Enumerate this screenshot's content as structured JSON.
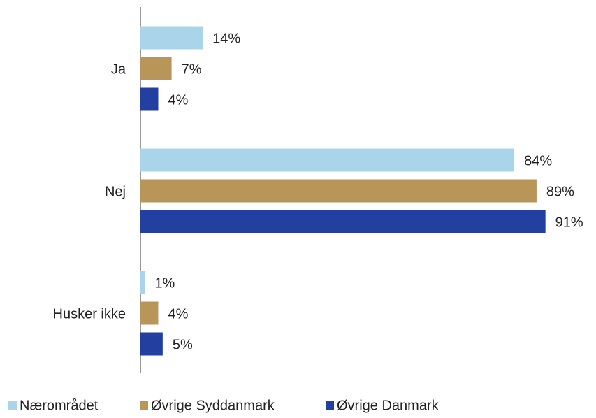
{
  "chart_data": {
    "type": "barh",
    "categories": [
      "Ja",
      "Nej",
      "Husker ikke"
    ],
    "series": [
      {
        "name": "Nærområdet",
        "color": "#a9d4ea",
        "values": [
          14,
          84,
          1
        ],
        "value_labels": [
          "14%",
          "84%",
          "1%"
        ]
      },
      {
        "name": "Øvrige Syddanmark",
        "color": "#b8965a",
        "values": [
          7,
          89,
          4
        ],
        "value_labels": [
          "7%",
          "89%",
          "4%"
        ]
      },
      {
        "name": "Øvrige Danmark",
        "color": "#233f9f",
        "values": [
          4,
          91,
          5
        ],
        "value_labels": [
          "4%",
          "91%",
          "5%"
        ]
      }
    ],
    "legend": "bottom"
  }
}
